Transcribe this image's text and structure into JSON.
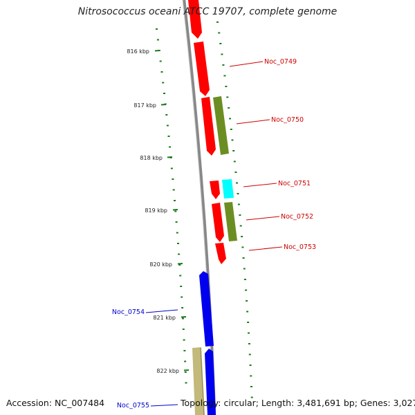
{
  "title": "Nitrosococcus oceani ATCC 19707, complete genome",
  "footer": {
    "accession": "Accession: NC_007484",
    "topology": "Topology: circular; Length: 3,481,691 bp; Genes: 3,027"
  },
  "colors": {
    "forward_gene": "#ff0000",
    "reverse_gene": "#0000ee",
    "olive_gene": "#6b8e23",
    "cyan_gene": "#00ffff",
    "khaki_gene": "#c2b97a",
    "backbone": "#888888",
    "tick": "#1a7a1a",
    "forward_label": "#cc0000",
    "reverse_label": "#0000cc"
  },
  "ticks": [
    {
      "label": "816 kbp"
    },
    {
      "label": "817 kbp"
    },
    {
      "label": "818 kbp"
    },
    {
      "label": "819 kbp"
    },
    {
      "label": "820 kbp"
    },
    {
      "label": "821 kbp"
    },
    {
      "label": "822 kbp"
    }
  ],
  "gene_labels": [
    {
      "text": "Noc_0749",
      "strand": "forward"
    },
    {
      "text": "Noc_0750",
      "strand": "forward"
    },
    {
      "text": "Noc_0751",
      "strand": "forward"
    },
    {
      "text": "Noc_0752",
      "strand": "forward"
    },
    {
      "text": "Noc_0753",
      "strand": "forward"
    },
    {
      "text": "Noc_0754",
      "strand": "reverse"
    },
    {
      "text": "Noc_0755",
      "strand": "reverse"
    }
  ]
}
